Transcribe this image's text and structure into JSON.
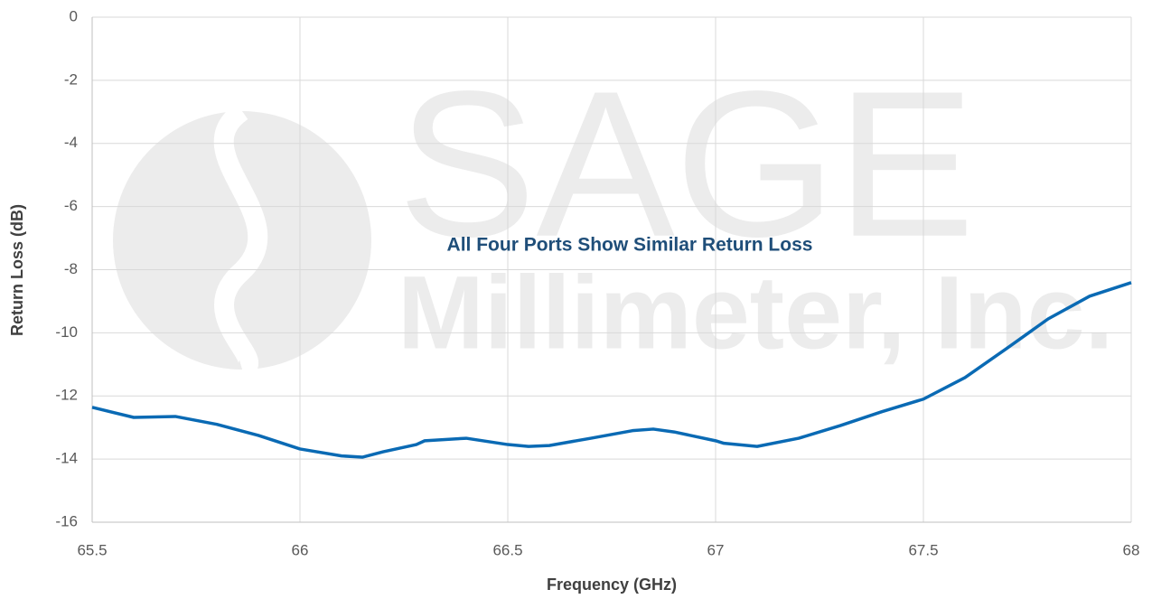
{
  "chart_data": {
    "type": "line",
    "xlabel": "Frequency (GHz)",
    "ylabel": "Return Loss (dB)",
    "annotation": "All Four Ports Show Similar Return Loss",
    "watermark": [
      "SAGE",
      "Millimeter, Inc."
    ],
    "x": [
      65.5,
      65.6,
      65.7,
      65.8,
      65.9,
      66.0,
      66.1,
      66.15,
      66.2,
      66.28,
      66.3,
      66.4,
      66.5,
      66.55,
      66.6,
      66.7,
      66.8,
      66.85,
      66.9,
      67.0,
      67.02,
      67.1,
      67.2,
      67.3,
      67.4,
      67.5,
      67.6,
      67.7,
      67.8,
      67.9,
      68.0
    ],
    "series": [
      {
        "color": "#0a6ab4",
        "values": [
          -12.36,
          -12.68,
          -12.65,
          -12.9,
          -13.25,
          -13.68,
          -13.9,
          -13.94,
          -13.77,
          -13.54,
          -13.42,
          -13.34,
          -13.54,
          -13.6,
          -13.57,
          -13.34,
          -13.1,
          -13.05,
          -13.14,
          -13.42,
          -13.5,
          -13.6,
          -13.34,
          -12.94,
          -12.5,
          -12.1,
          -11.42,
          -10.5,
          -9.56,
          -8.84,
          -8.41
        ]
      }
    ],
    "xlim": [
      65.5,
      68
    ],
    "xticks": [
      65.5,
      66,
      66.5,
      67,
      67.5,
      68
    ],
    "ylim": [
      -16,
      0
    ],
    "yticks": [
      -16,
      -14,
      -12,
      -10,
      -8,
      -6,
      -4,
      -2,
      0
    ],
    "grid": true
  }
}
